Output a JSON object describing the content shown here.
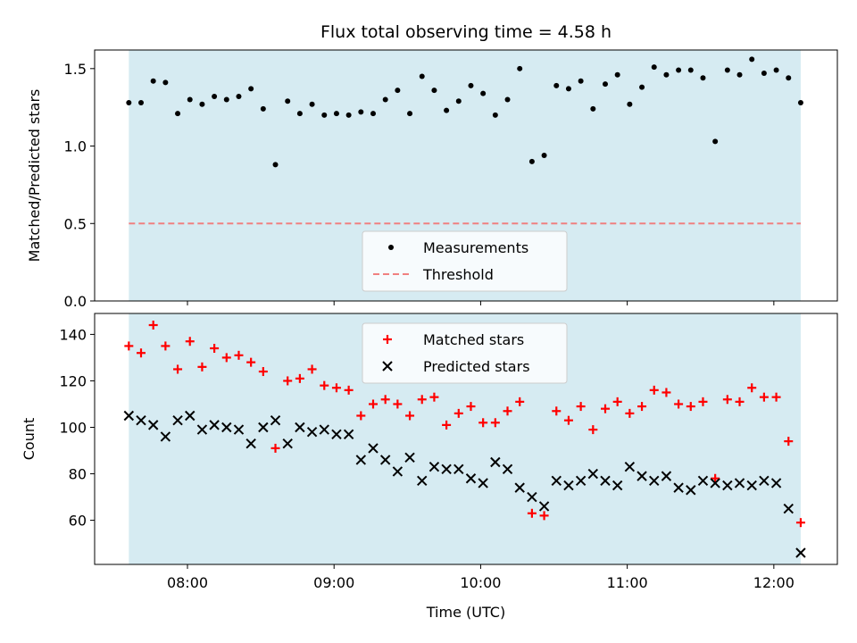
{
  "colors": {
    "band": "#add8e6",
    "measurement": "#000000",
    "threshold": "#f08080",
    "matched": "#ff0000",
    "predicted": "#000000"
  },
  "chart_data": [
    {
      "type": "scatter",
      "title": "Flux total observing time = 4.58 h",
      "xlabel": "",
      "ylabel": "Matched/Predicted stars",
      "ylim": [
        0,
        1.62
      ],
      "yticks": [
        0.0,
        0.5,
        1.0,
        1.5
      ],
      "ytick_labels": [
        "0.0",
        "0.5",
        "1.0",
        "1.5"
      ],
      "band": {
        "start": "07:36",
        "end": "12:11"
      },
      "threshold": 0.5,
      "legend": {
        "placement": "bottom-center",
        "measurements_label": "Measurements",
        "threshold_label": "Threshold"
      },
      "times": [
        "07:36",
        "07:41",
        "07:46",
        "07:51",
        "07:56",
        "08:01",
        "08:06",
        "08:11",
        "08:16",
        "08:21",
        "08:26",
        "08:31",
        "08:36",
        "08:41",
        "08:46",
        "08:51",
        "08:56",
        "09:01",
        "09:06",
        "09:11",
        "09:16",
        "09:21",
        "09:26",
        "09:31",
        "09:36",
        "09:41",
        "09:46",
        "09:51",
        "09:56",
        "10:01",
        "10:06",
        "10:11",
        "10:16",
        "10:21",
        "10:26",
        "10:31",
        "10:36",
        "10:41",
        "10:46",
        "10:51",
        "10:56",
        "11:01",
        "11:06",
        "11:11",
        "11:16",
        "11:21",
        "11:26",
        "11:31",
        "11:36",
        "11:41",
        "11:46",
        "11:51",
        "11:56",
        "12:01",
        "12:06",
        "12:11"
      ],
      "values": [
        1.28,
        1.28,
        1.42,
        1.41,
        1.21,
        1.3,
        1.27,
        1.32,
        1.3,
        1.32,
        1.37,
        1.24,
        0.88,
        1.29,
        1.21,
        1.27,
        1.2,
        1.21,
        1.2,
        1.22,
        1.21,
        1.3,
        1.36,
        1.21,
        1.45,
        1.36,
        1.23,
        1.29,
        1.39,
        1.34,
        1.2,
        1.3,
        1.5,
        0.9,
        0.94,
        1.39,
        1.37,
        1.42,
        1.24,
        1.4,
        1.46,
        1.27,
        1.38,
        1.51,
        1.46,
        1.49,
        1.49,
        1.44,
        1.03,
        1.49,
        1.46,
        1.56,
        1.47,
        1.49,
        1.44,
        1.28
      ]
    },
    {
      "type": "scatter",
      "title": "",
      "xlabel": "Time (UTC)",
      "ylabel": "Count",
      "ylim": [
        41,
        149
      ],
      "yticks": [
        60,
        80,
        100,
        120,
        140
      ],
      "xlim": [
        "07:22",
        "12:26"
      ],
      "xticks": [
        "08:00",
        "09:00",
        "10:00",
        "11:00",
        "12:00"
      ],
      "legend": {
        "placement": "top-center",
        "matched_label": "Matched stars",
        "predicted_label": "Predicted stars"
      },
      "times": [
        "07:36",
        "07:41",
        "07:46",
        "07:51",
        "07:56",
        "08:01",
        "08:06",
        "08:11",
        "08:16",
        "08:21",
        "08:26",
        "08:31",
        "08:36",
        "08:41",
        "08:46",
        "08:51",
        "08:56",
        "09:01",
        "09:06",
        "09:11",
        "09:16",
        "09:21",
        "09:26",
        "09:31",
        "09:36",
        "09:41",
        "09:46",
        "09:51",
        "09:56",
        "10:01",
        "10:06",
        "10:11",
        "10:16",
        "10:21",
        "10:26",
        "10:31",
        "10:36",
        "10:41",
        "10:46",
        "10:51",
        "10:56",
        "11:01",
        "11:06",
        "11:11",
        "11:16",
        "11:21",
        "11:26",
        "11:31",
        "11:36",
        "11:41",
        "11:46",
        "11:51",
        "11:56",
        "12:01",
        "12:06",
        "12:11"
      ],
      "series": [
        {
          "name": "Matched stars",
          "marker": "plus",
          "values": [
            135,
            132,
            144,
            135,
            125,
            137,
            126,
            134,
            130,
            131,
            128,
            124,
            91,
            120,
            121,
            125,
            118,
            117,
            116,
            105,
            110,
            112,
            110,
            105,
            112,
            113,
            101,
            106,
            109,
            102,
            102,
            107,
            111,
            63,
            62,
            107,
            103,
            109,
            99,
            108,
            111,
            106,
            109,
            116,
            115,
            110,
            109,
            111,
            78,
            112,
            111,
            117,
            113,
            113,
            94,
            59
          ]
        },
        {
          "name": "Predicted stars",
          "marker": "x",
          "values": [
            105,
            103,
            101,
            96,
            103,
            105,
            99,
            101,
            100,
            99,
            93,
            100,
            103,
            93,
            100,
            98,
            99,
            97,
            97,
            86,
            91,
            86,
            81,
            87,
            77,
            83,
            82,
            82,
            78,
            76,
            85,
            82,
            74,
            70,
            66,
            77,
            75,
            77,
            80,
            77,
            75,
            83,
            79,
            77,
            79,
            74,
            73,
            77,
            76,
            75,
            76,
            75,
            77,
            76,
            65,
            46
          ]
        }
      ]
    }
  ]
}
